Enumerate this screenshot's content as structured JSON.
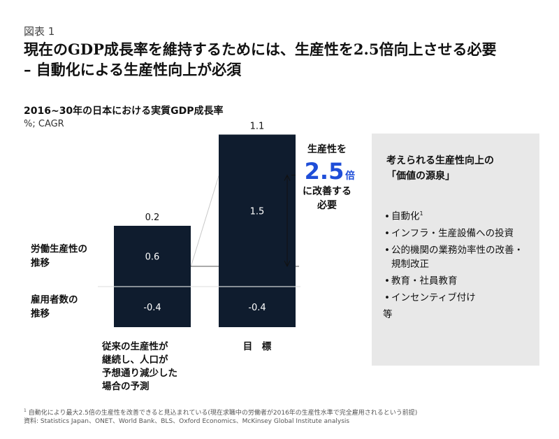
{
  "figure_label": "図表 1",
  "title_line1": "現在のGDP成長率を維持するためには、生産性を2.5倍向上させる必要",
  "title_line2": "– 自動化による生産性向上が必須",
  "chart_data": {
    "type": "bar",
    "title": "2016~30年の日本における実質GDP成長率",
    "unit": "%; CAGR",
    "categories": [
      "従来の生産性が継続し、人口が予想通り減少した場合の予測",
      "目　標"
    ],
    "category_label_lines": [
      [
        "従来の生産性が",
        "継続し、人口が",
        "予想通り減少した",
        "場合の予測"
      ],
      [
        "目　標"
      ]
    ],
    "series": [
      {
        "name_lines": [
          "労働生産性の",
          "推移"
        ],
        "values": [
          0.6,
          1.5
        ]
      },
      {
        "name_lines": [
          "雇用者数の",
          "推移"
        ],
        "values": [
          -0.4,
          -0.4
        ]
      }
    ],
    "totals": [
      0.2,
      1.1
    ],
    "value_labels": [
      [
        "0.6",
        "1.5"
      ],
      [
        "-0.4",
        "-0.4"
      ]
    ],
    "total_labels": [
      "0.2",
      "1.1"
    ],
    "ylim": [
      -0.4,
      1.1
    ],
    "bar_color": "#0f1c2e",
    "annotation": {
      "line1": "生産性を",
      "big": "2.5",
      "big_suffix": "倍",
      "line3": "に改善する",
      "line4": "必要",
      "accent": "#1f4ed8"
    }
  },
  "side_panel": {
    "title_line1": "考えられる生産性向上の",
    "title_line2": "「価値の源泉」",
    "items": [
      {
        "bullet": "•",
        "text": "自動化",
        "sup": "1"
      },
      {
        "bullet": "•",
        "text": "インフラ・生産設備への投資"
      },
      {
        "bullet": "•",
        "text": "公的機関の業務効率性の改善・規制改正"
      },
      {
        "bullet": "•",
        "text": "教育・社員教育"
      },
      {
        "bullet": "•",
        "text": "インセンティブ付け"
      }
    ],
    "etc": "等"
  },
  "footnote": {
    "sup": "1",
    "text": "自動化により最大2.5倍の生産性を改善できると見込まれている(現在求職中の労働者が2016年の生産性水準で完全雇用されるという前提)",
    "source": "資料: Statistics Japan、ONET、World Bank、BLS、Oxford Economics、McKinsey Global Institute analysis"
  }
}
